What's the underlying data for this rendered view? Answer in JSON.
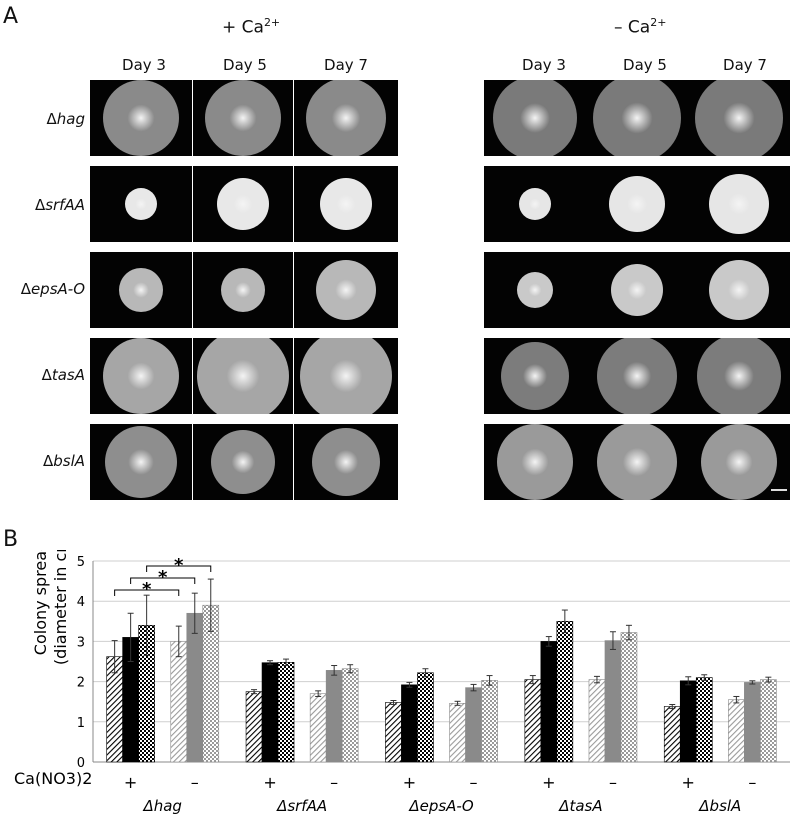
{
  "figure": {
    "panel_a_label": "A",
    "panel_b_label": "B",
    "conditions": [
      {
        "label": "+ Ca",
        "superscript": "2+"
      },
      {
        "label": "– Ca",
        "superscript": "2+"
      }
    ],
    "days": [
      "Day 3",
      "Day 5",
      "Day 7"
    ],
    "strains": [
      {
        "delta": "Δ",
        "name": "hag"
      },
      {
        "delta": "Δ",
        "name": "srfAA"
      },
      {
        "delta": "Δ",
        "name": "epsA-O"
      },
      {
        "delta": "Δ",
        "name": "tasA"
      },
      {
        "delta": "Δ",
        "name": "bslA"
      }
    ]
  },
  "chart_data": {
    "type": "bar",
    "ylabel_line1": "Colony spread",
    "ylabel_line2": "(diameter in cm)",
    "row_label": "Ca(NO3)2",
    "ylim": [
      0,
      5
    ],
    "yticks": [
      0,
      1,
      2,
      3,
      4,
      5
    ],
    "grid": true,
    "significance_marker": "*",
    "groups": [
      {
        "strain": "Δhag",
        "conditions": [
          {
            "sign": "+",
            "values": [
              2.62,
              3.1,
              3.4
            ],
            "errors": [
              0.4,
              0.6,
              0.75
            ]
          },
          {
            "sign": "–",
            "values": [
              3.0,
              3.7,
              3.9
            ],
            "errors": [
              0.38,
              0.5,
              0.65
            ]
          }
        ]
      },
      {
        "strain": "ΔsrfAA",
        "conditions": [
          {
            "sign": "+",
            "values": [
              1.75,
              2.47,
              2.48
            ],
            "errors": [
              0.05,
              0.05,
              0.08
            ]
          },
          {
            "sign": "–",
            "values": [
              1.7,
              2.28,
              2.32
            ],
            "errors": [
              0.07,
              0.12,
              0.1
            ]
          }
        ]
      },
      {
        "strain": "ΔepsA-O",
        "conditions": [
          {
            "sign": "+",
            "values": [
              1.48,
              1.92,
              2.22
            ],
            "errors": [
              0.05,
              0.06,
              0.1
            ]
          },
          {
            "sign": "–",
            "values": [
              1.46,
              1.85,
              2.03
            ],
            "errors": [
              0.05,
              0.08,
              0.12
            ]
          }
        ]
      },
      {
        "strain": "ΔtasA",
        "conditions": [
          {
            "sign": "+",
            "values": [
              2.05,
              3.0,
              3.5
            ],
            "errors": [
              0.1,
              0.12,
              0.28
            ]
          },
          {
            "sign": "–",
            "values": [
              2.05,
              3.02,
              3.22
            ],
            "errors": [
              0.08,
              0.22,
              0.18
            ]
          }
        ]
      },
      {
        "strain": "ΔbslA",
        "conditions": [
          {
            "sign": "+",
            "values": [
              1.38,
              2.02,
              2.1
            ],
            "errors": [
              0.05,
              0.1,
              0.07
            ]
          },
          {
            "sign": "–",
            "values": [
              1.55,
              1.98,
              2.05
            ],
            "errors": [
              0.08,
              0.04,
              0.06
            ]
          }
        ]
      }
    ],
    "significance": [
      {
        "group": 0,
        "from": [
          0,
          0
        ],
        "to": [
          1,
          0
        ]
      },
      {
        "group": 0,
        "from": [
          0,
          1
        ],
        "to": [
          1,
          1
        ]
      },
      {
        "group": 0,
        "from": [
          0,
          2
        ],
        "to": [
          1,
          2
        ]
      }
    ],
    "colors": {
      "plus": "#000000",
      "minus": "#8a8a8a",
      "grid": "#cfcfcf"
    }
  }
}
